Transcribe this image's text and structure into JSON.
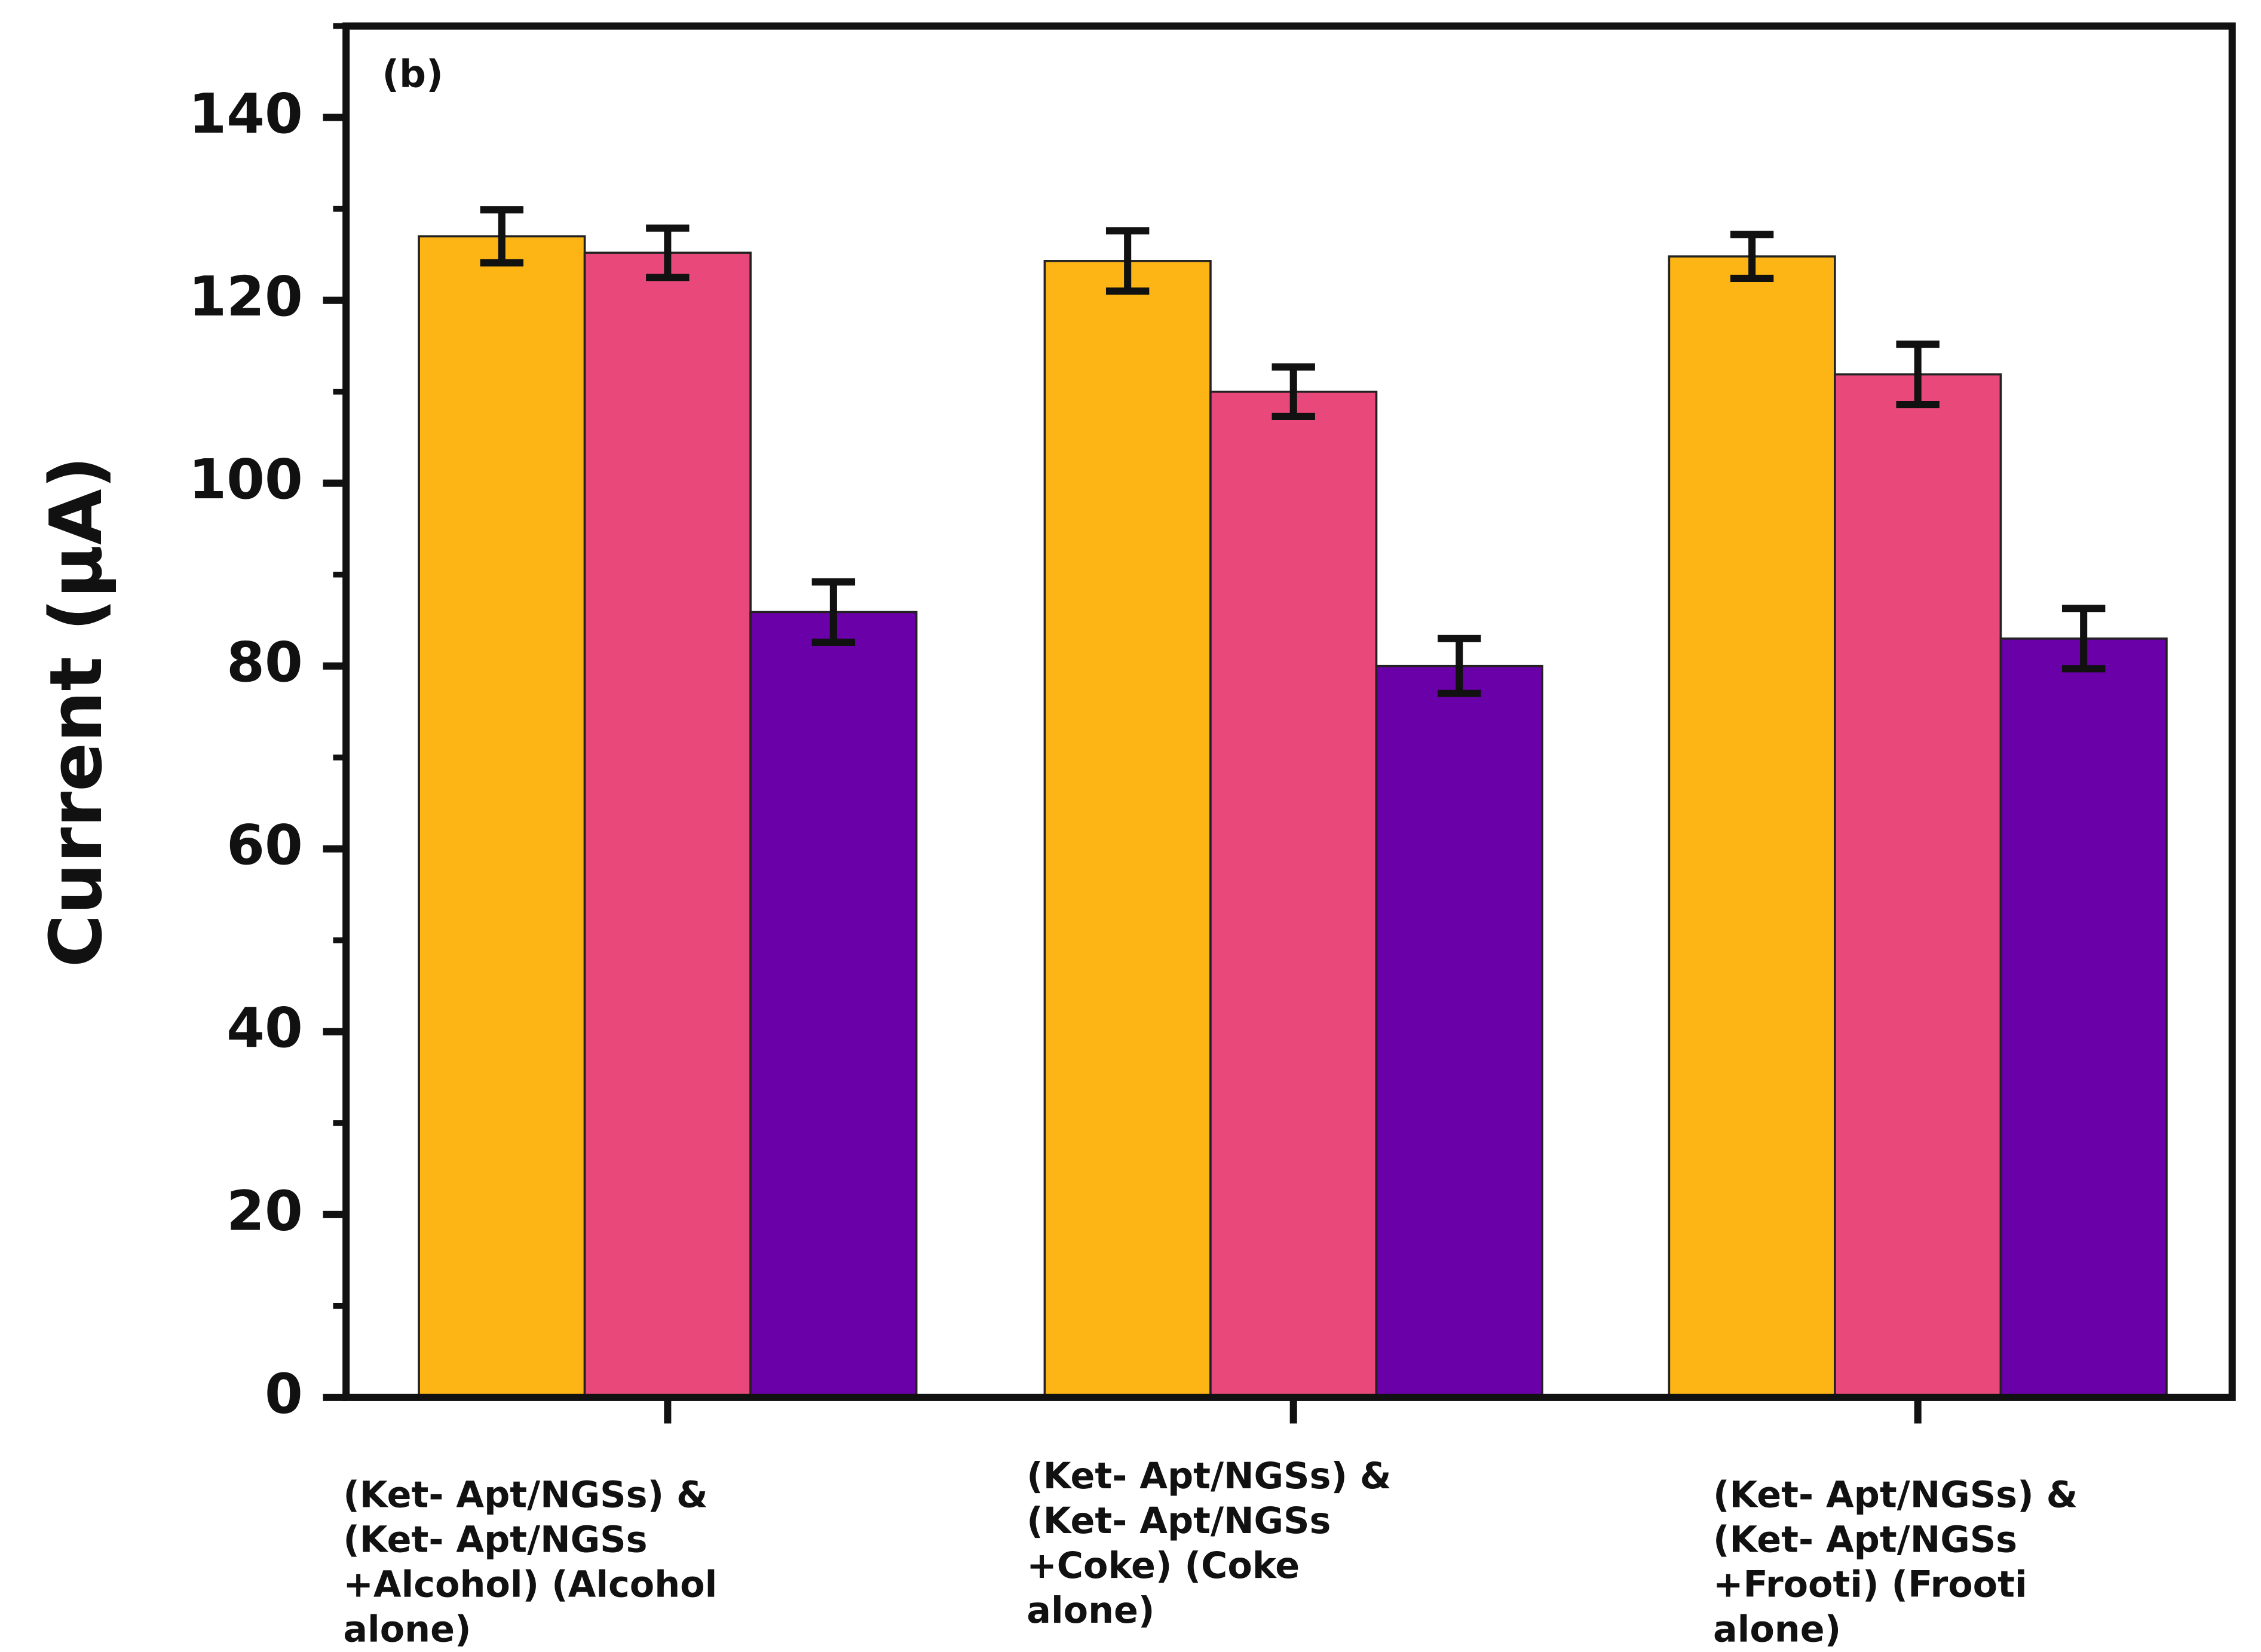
{
  "chart_data": {
    "type": "bar",
    "panel_label": "(b)",
    "y_label": "Current (μA)",
    "categories": [
      [
        "(Ket- Apt/NGSs) &",
        "(Ket- Apt/NGSs",
        "+Alcohol) (Alcohol",
        "alone)"
      ],
      [
        "(Ket- Apt/NGSs) &",
        "(Ket- Apt/NGSs",
        "+Coke) (Coke",
        "alone)"
      ],
      [
        "(Ket- Apt/NGSs) &",
        "(Ket- Apt/NGSs",
        "+Frooti) (Frooti",
        "alone)"
      ]
    ],
    "series": [
      {
        "color": "#FDB515",
        "values": [
          127.0,
          124.3,
          124.8
        ],
        "errors": [
          2.9,
          3.3,
          2.4
        ]
      },
      {
        "color": "#E8497A",
        "values": [
          125.2,
          110.0,
          111.9
        ],
        "errors": [
          2.7,
          2.7,
          3.3
        ]
      },
      {
        "color": "#6A00A8",
        "values": [
          85.9,
          80.0,
          83.0
        ],
        "errors": [
          3.3,
          3.0,
          3.3
        ]
      }
    ],
    "ylim": [
      0,
      150
    ],
    "yticks": [
      0,
      20,
      40,
      60,
      80,
      100,
      120,
      140
    ],
    "yminorticks": [
      10,
      30,
      50,
      70,
      90,
      110,
      130,
      150
    ]
  }
}
